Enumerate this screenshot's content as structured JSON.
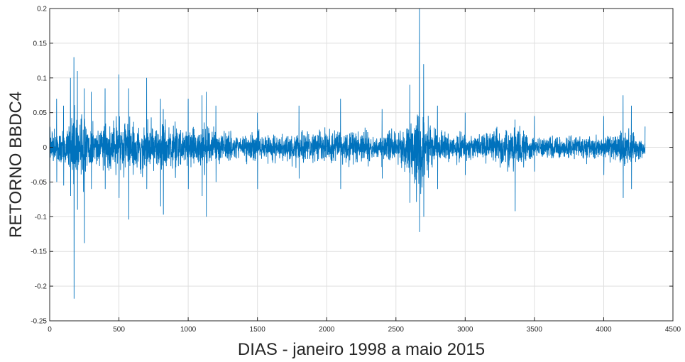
{
  "chart_data": {
    "type": "line",
    "title": "",
    "xlabel": "DIAS - janeiro 1998 a maio 2015",
    "ylabel": "RETORNO BBDC4",
    "xlim": [
      0,
      4500
    ],
    "ylim": [
      -0.25,
      0.2
    ],
    "xticks": [
      0,
      500,
      1000,
      1500,
      2000,
      2500,
      3000,
      3500,
      4000,
      4500
    ],
    "xtick_labels": [
      "0",
      "500",
      "1000",
      "1500",
      "2000",
      "2500",
      "3000",
      "3500",
      "4000",
      "4500"
    ],
    "yticks": [
      -0.25,
      -0.2,
      -0.15,
      -0.1,
      -0.05,
      0,
      0.05,
      0.1,
      0.15,
      0.2
    ],
    "ytick_labels": [
      "-0.25",
      "-0.2",
      "-0.15",
      "-0.1",
      "-0.05",
      "0",
      "0.05",
      "0.1",
      "0.15",
      "0.2"
    ],
    "grid": true,
    "series_color": "#0072BD",
    "n_points": 4300,
    "series": [
      {
        "name": "",
        "envelope": [
          {
            "x": 0,
            "max": 0.03,
            "min": -0.08
          },
          {
            "x": 50,
            "max": 0.07,
            "min": -0.05
          },
          {
            "x": 100,
            "max": 0.06,
            "min": -0.055
          },
          {
            "x": 150,
            "max": 0.1,
            "min": -0.07
          },
          {
            "x": 175,
            "max": 0.13,
            "min": -0.218
          },
          {
            "x": 200,
            "max": 0.11,
            "min": -0.09
          },
          {
            "x": 250,
            "max": 0.085,
            "min": -0.138
          },
          {
            "x": 300,
            "max": 0.08,
            "min": -0.06
          },
          {
            "x": 400,
            "max": 0.085,
            "min": -0.06
          },
          {
            "x": 500,
            "max": 0.105,
            "min": -0.073
          },
          {
            "x": 570,
            "max": 0.085,
            "min": -0.104
          },
          {
            "x": 700,
            "max": 0.1,
            "min": -0.06
          },
          {
            "x": 800,
            "max": 0.07,
            "min": -0.085
          },
          {
            "x": 820,
            "max": 0.055,
            "min": -0.097
          },
          {
            "x": 1000,
            "max": 0.07,
            "min": -0.06
          },
          {
            "x": 1100,
            "max": 0.075,
            "min": -0.07
          },
          {
            "x": 1130,
            "max": 0.08,
            "min": -0.1
          },
          {
            "x": 1200,
            "max": 0.06,
            "min": -0.05
          },
          {
            "x": 1500,
            "max": 0.05,
            "min": -0.06
          },
          {
            "x": 1800,
            "max": 0.06,
            "min": -0.045
          },
          {
            "x": 2100,
            "max": 0.07,
            "min": -0.06
          },
          {
            "x": 2400,
            "max": 0.055,
            "min": -0.045
          },
          {
            "x": 2600,
            "max": 0.09,
            "min": -0.08
          },
          {
            "x": 2670,
            "max": 0.2,
            "min": -0.122
          },
          {
            "x": 2700,
            "max": 0.12,
            "min": -0.1
          },
          {
            "x": 2800,
            "max": 0.06,
            "min": -0.06
          },
          {
            "x": 3000,
            "max": 0.05,
            "min": -0.04
          },
          {
            "x": 3360,
            "max": 0.04,
            "min": -0.092
          },
          {
            "x": 3500,
            "max": 0.045,
            "min": -0.035
          },
          {
            "x": 4000,
            "max": 0.045,
            "min": -0.04
          },
          {
            "x": 4140,
            "max": 0.075,
            "min": -0.073
          },
          {
            "x": 4200,
            "max": 0.06,
            "min": -0.06
          },
          {
            "x": 4300,
            "max": 0.03,
            "min": -0.03
          }
        ]
      }
    ]
  }
}
